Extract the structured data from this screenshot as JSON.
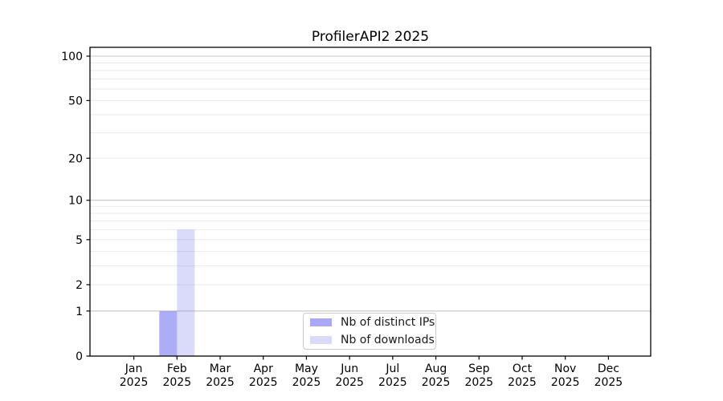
{
  "chart_data": {
    "type": "bar",
    "title": "ProfilerAPI2 2025",
    "xlabel": "",
    "ylabel": "",
    "yscale": "log1p",
    "grid": "on",
    "ylim": [
      0,
      115
    ],
    "y_tick_values": [
      0,
      1,
      2,
      5,
      10,
      20,
      50,
      100
    ],
    "y_major_grid_values": [
      1,
      10,
      100
    ],
    "y_minor_grid_values": [
      2,
      3,
      4,
      5,
      6,
      7,
      8,
      9,
      20,
      30,
      40,
      50,
      60,
      70,
      80,
      90
    ],
    "x_tick_labels": [
      {
        "month": "Jan",
        "year": "2025"
      },
      {
        "month": "Feb",
        "year": "2025"
      },
      {
        "month": "Mar",
        "year": "2025"
      },
      {
        "month": "Apr",
        "year": "2025"
      },
      {
        "month": "May",
        "year": "2025"
      },
      {
        "month": "Jun",
        "year": "2025"
      },
      {
        "month": "Jul",
        "year": "2025"
      },
      {
        "month": "Aug",
        "year": "2025"
      },
      {
        "month": "Sep",
        "year": "2025"
      },
      {
        "month": "Oct",
        "year": "2025"
      },
      {
        "month": "Nov",
        "year": "2025"
      },
      {
        "month": "Dec",
        "year": "2025"
      }
    ],
    "series": [
      {
        "name": "Nb of distinct IPs",
        "color": "#a9a9f7",
        "fill": "rgba(134,134,243,0.68)",
        "values": [
          0,
          1,
          0,
          0,
          0,
          0,
          0,
          0,
          0,
          0,
          0,
          0
        ]
      },
      {
        "name": "Nb of downloads",
        "color": "#dbdbf8",
        "fill": "rgba(134,134,243,0.30)",
        "values": [
          0,
          6,
          0,
          0,
          0,
          0,
          0,
          0,
          0,
          0,
          0,
          0
        ]
      }
    ],
    "legend": {
      "position": "lower center",
      "entries": [
        {
          "label": "Nb of distinct IPs",
          "color": "#a9a9f7"
        },
        {
          "label": "Nb of downloads",
          "color": "#dbdbf8"
        }
      ]
    }
  },
  "colors": {
    "spine": "#000000",
    "tick": "#000000",
    "text": "#000000",
    "major_grid": "#c4c4c4",
    "minor_grid": "#e9e9e9",
    "legend_border": "#cccccc",
    "background": "#ffffff"
  }
}
